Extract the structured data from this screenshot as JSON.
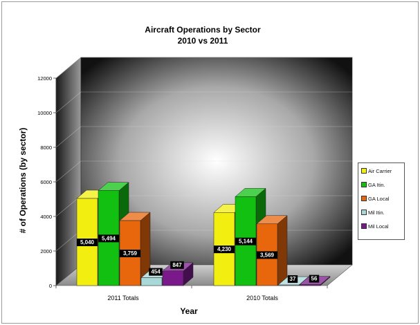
{
  "chart_data": {
    "type": "bar",
    "title": "Aircraft Operations by Sector",
    "subtitle": "2010 vs 2011",
    "xlabel": "Year",
    "ylabel": "# of Operations (by sector)",
    "ylim": [
      0,
      12000
    ],
    "yticks": [
      "0",
      "2000",
      "4000",
      "6000",
      "8000",
      "10000",
      "12000"
    ],
    "categories": [
      "2011 Totals",
      "2010 Totals"
    ],
    "series": [
      {
        "name": "Air Carrier",
        "color": "#f2ee10",
        "values": [
          5040,
          4230
        ],
        "labels": [
          "5,040",
          "4,230"
        ]
      },
      {
        "name": "GA Itin.",
        "color": "#12c012",
        "values": [
          5494,
          5144
        ],
        "labels": [
          "5,494",
          "5,144"
        ]
      },
      {
        "name": "GA Local",
        "color": "#e8660c",
        "values": [
          3759,
          3569
        ],
        "labels": [
          "3,759",
          "3,569"
        ]
      },
      {
        "name": "Mil Itin.",
        "color": "#a8d8d8",
        "values": [
          454,
          37
        ],
        "labels": [
          "454",
          "37"
        ]
      },
      {
        "name": "Mil Local",
        "color": "#7a1a8a",
        "values": [
          847,
          56
        ],
        "labels": [
          "847",
          "56"
        ]
      }
    ],
    "legend": "right",
    "grid": true
  }
}
